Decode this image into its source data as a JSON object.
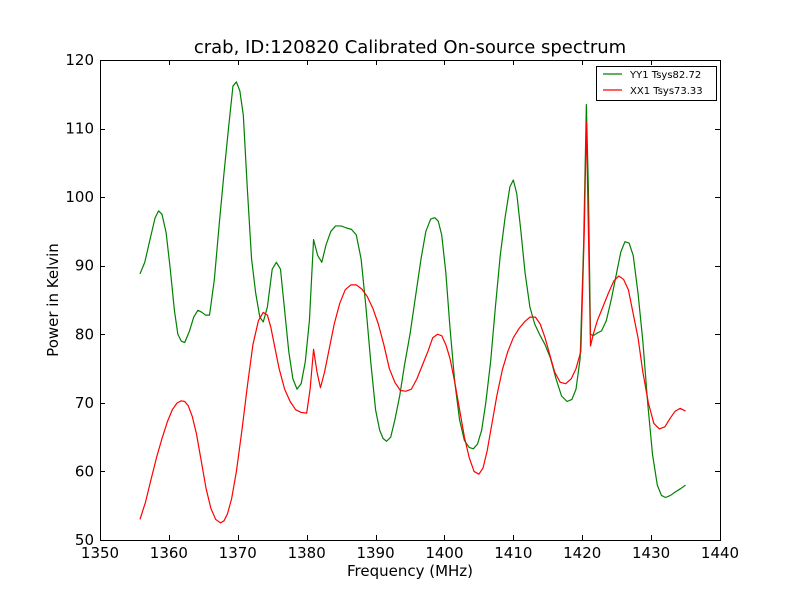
{
  "chart_data": {
    "type": "line",
    "title": "crab, ID:120820 Calibrated On-source spectrum",
    "xlabel": "Frequency (MHz)",
    "ylabel": "Power in Kelvin",
    "xlim": [
      1350,
      1440
    ],
    "ylim": [
      50,
      120
    ],
    "xticks": [
      "1350",
      "1360",
      "1370",
      "1380",
      "1390",
      "1400",
      "1410",
      "1420",
      "1430",
      "1440"
    ],
    "yticks": [
      "50",
      "60",
      "70",
      "80",
      "90",
      "100",
      "110",
      "120"
    ],
    "grid": false,
    "legend_position": "top-right",
    "series": [
      {
        "name": "YY1 Tsys82.72",
        "color": "#008000",
        "x": [
          1355.8,
          1356.5,
          1357.3,
          1358.0,
          1358.5,
          1359.0,
          1359.6,
          1360.2,
          1360.8,
          1361.3,
          1361.8,
          1362.3,
          1363.0,
          1363.6,
          1364.2,
          1364.8,
          1365.3,
          1365.9,
          1366.6,
          1367.3,
          1368.0,
          1368.7,
          1369.3,
          1369.8,
          1370.3,
          1370.8,
          1371.4,
          1372.0,
          1372.6,
          1373.2,
          1373.7,
          1374.3,
          1375.0,
          1375.6,
          1376.2,
          1376.8,
          1377.4,
          1378.0,
          1378.6,
          1379.2,
          1379.8,
          1380.4,
          1381.0,
          1381.6,
          1382.2,
          1382.8,
          1383.5,
          1384.2,
          1385.0,
          1385.8,
          1386.5,
          1387.2,
          1387.9,
          1388.6,
          1389.3,
          1390.0,
          1390.6,
          1391.1,
          1391.6,
          1392.2,
          1392.8,
          1393.5,
          1394.2,
          1395.0,
          1395.8,
          1396.6,
          1397.3,
          1398.0,
          1398.6,
          1399.1,
          1399.6,
          1400.2,
          1400.8,
          1401.5,
          1402.2,
          1402.9,
          1403.6,
          1404.2,
          1404.8,
          1405.4,
          1406.0,
          1406.7,
          1407.4,
          1408.1,
          1408.8,
          1409.5,
          1410.0,
          1410.5,
          1411.1,
          1411.7,
          1412.4,
          1413.1,
          1413.8,
          1414.6,
          1415.4,
          1416.2,
          1417.0,
          1417.8,
          1418.5,
          1419.1,
          1419.7,
          1420.2,
          1420.6,
          1420.9,
          1421.2,
          1421.6,
          1422.2,
          1422.8,
          1423.5,
          1424.2,
          1424.9,
          1425.6,
          1426.2,
          1426.8,
          1427.4,
          1428.1,
          1428.8,
          1429.5,
          1430.2,
          1430.9,
          1431.5,
          1432.1,
          1432.8,
          1433.5,
          1434.3,
          1435.0
        ],
        "y": [
          88.8,
          90.5,
          94.0,
          97.0,
          98.0,
          97.5,
          94.8,
          89.5,
          83.5,
          80.0,
          79.0,
          78.8,
          80.5,
          82.5,
          83.5,
          83.2,
          82.8,
          82.8,
          88.0,
          96.0,
          103.5,
          110.5,
          116.2,
          116.8,
          115.5,
          112.0,
          101.0,
          91.0,
          86.0,
          82.5,
          81.8,
          84.0,
          89.5,
          90.5,
          89.5,
          83.5,
          77.5,
          73.5,
          72.0,
          72.8,
          76.0,
          82.0,
          93.8,
          91.5,
          90.5,
          93.0,
          95.0,
          95.8,
          95.8,
          95.5,
          95.3,
          94.5,
          91.0,
          84.0,
          76.0,
          69.0,
          66.0,
          64.8,
          64.4,
          65.0,
          67.5,
          71.0,
          75.5,
          80.0,
          85.5,
          91.0,
          95.0,
          96.8,
          97.0,
          96.5,
          94.5,
          89.0,
          81.0,
          73.0,
          67.5,
          64.5,
          63.5,
          63.3,
          64.0,
          66.0,
          70.0,
          76.0,
          84.0,
          91.5,
          97.0,
          101.5,
          102.5,
          100.5,
          95.0,
          89.0,
          84.0,
          81.5,
          80.0,
          78.5,
          76.5,
          73.5,
          71.0,
          70.2,
          70.5,
          72.0,
          76.5,
          93.0,
          113.5,
          101.0,
          80.0,
          79.8,
          80.2,
          80.5,
          82.0,
          85.0,
          88.5,
          92.0,
          93.5,
          93.3,
          91.5,
          86.0,
          79.0,
          70.0,
          62.5,
          58.0,
          56.5,
          56.2,
          56.5,
          57.0,
          57.5,
          58.0
        ]
      },
      {
        "name": "XX1 Tsys73.33",
        "color": "#ff0000",
        "x": [
          1355.8,
          1356.6,
          1357.4,
          1358.2,
          1359.0,
          1359.8,
          1360.5,
          1361.2,
          1361.8,
          1362.3,
          1362.8,
          1363.4,
          1364.0,
          1364.7,
          1365.4,
          1366.1,
          1366.8,
          1367.5,
          1368.0,
          1368.5,
          1369.1,
          1369.8,
          1370.6,
          1371.4,
          1372.2,
          1373.0,
          1373.7,
          1374.3,
          1374.8,
          1375.3,
          1376.0,
          1376.8,
          1377.6,
          1378.4,
          1379.2,
          1380.0,
          1380.5,
          1381.0,
          1381.5,
          1382.0,
          1382.6,
          1383.3,
          1384.0,
          1384.8,
          1385.6,
          1386.4,
          1387.2,
          1388.0,
          1388.8,
          1389.6,
          1390.4,
          1391.2,
          1392.0,
          1392.8,
          1393.6,
          1394.4,
          1395.2,
          1396.0,
          1396.8,
          1397.6,
          1398.3,
          1399.0,
          1399.6,
          1400.2,
          1400.8,
          1401.5,
          1402.2,
          1402.9,
          1403.6,
          1404.3,
          1405.0,
          1405.6,
          1406.2,
          1406.9,
          1407.6,
          1408.4,
          1409.2,
          1410.0,
          1410.8,
          1411.6,
          1412.4,
          1413.2,
          1413.9,
          1414.6,
          1415.3,
          1416.0,
          1416.8,
          1417.6,
          1418.4,
          1419.1,
          1419.8,
          1420.3,
          1420.6,
          1420.9,
          1421.2,
          1421.6,
          1422.2,
          1423.0,
          1423.8,
          1424.6,
          1425.3,
          1426.0,
          1426.7,
          1427.4,
          1428.1,
          1428.8,
          1429.6,
          1430.4,
          1431.2,
          1432.0,
          1432.8,
          1433.5,
          1434.2,
          1435.0
        ],
        "y": [
          53.0,
          55.5,
          58.8,
          62.0,
          64.8,
          67.3,
          69.0,
          70.0,
          70.3,
          70.2,
          69.6,
          68.0,
          65.5,
          61.5,
          57.5,
          54.6,
          53.0,
          52.5,
          52.8,
          53.8,
          56.0,
          60.0,
          66.0,
          72.5,
          78.5,
          82.0,
          83.2,
          82.8,
          81.0,
          78.5,
          75.0,
          72.0,
          70.2,
          69.0,
          68.6,
          68.5,
          72.0,
          77.8,
          74.5,
          72.2,
          74.5,
          78.0,
          81.5,
          84.5,
          86.5,
          87.2,
          87.2,
          86.6,
          85.5,
          83.8,
          81.5,
          78.5,
          75.0,
          73.0,
          71.8,
          71.7,
          72.0,
          73.5,
          75.5,
          77.5,
          79.5,
          80.0,
          79.8,
          78.5,
          76.5,
          73.0,
          69.0,
          65.0,
          62.0,
          60.0,
          59.6,
          60.5,
          63.0,
          67.0,
          71.0,
          74.8,
          77.5,
          79.5,
          80.8,
          81.8,
          82.5,
          82.5,
          81.5,
          79.5,
          77.0,
          74.5,
          73.0,
          72.8,
          73.5,
          75.0,
          77.5,
          95.0,
          111.0,
          95.0,
          78.3,
          80.0,
          82.0,
          84.0,
          86.0,
          87.8,
          88.5,
          88.0,
          86.5,
          83.0,
          79.5,
          74.5,
          70.0,
          67.0,
          66.2,
          66.5,
          67.8,
          68.8,
          69.2,
          68.8
        ]
      }
    ]
  }
}
